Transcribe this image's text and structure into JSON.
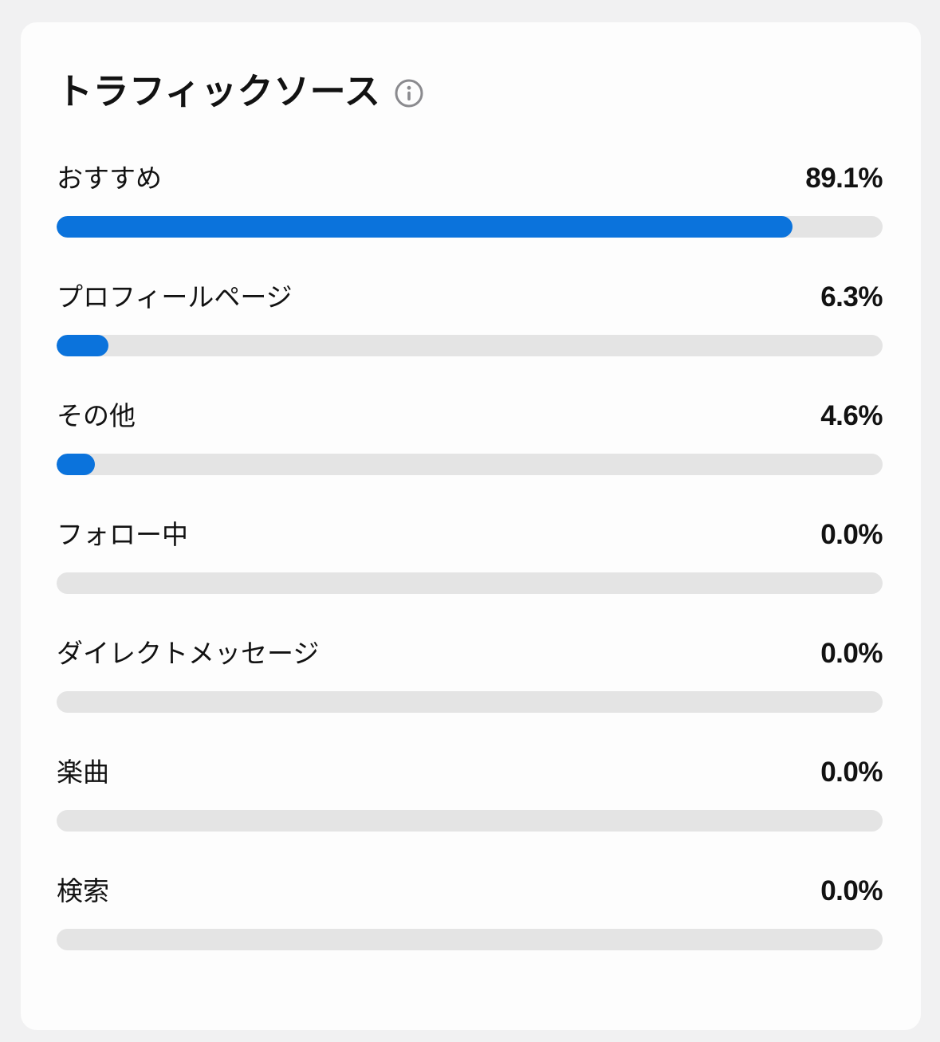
{
  "page": {
    "background": "#F1F1F2"
  },
  "card": {
    "title": "トラフィックソース",
    "background": "#FDFDFD"
  },
  "colors": {
    "bar_fill": "#0B73DC",
    "bar_track": "#E4E4E4",
    "text": "#121212",
    "info_icon": "#8A8A8E"
  },
  "rows": [
    {
      "label": "おすすめ",
      "percent": "89.1%",
      "value": 89.1
    },
    {
      "label": "プロフィールページ",
      "percent": "6.3%",
      "value": 6.3
    },
    {
      "label": "その他",
      "percent": "4.6%",
      "value": 4.6
    },
    {
      "label": "フォロー中",
      "percent": "0.0%",
      "value": 0
    },
    {
      "label": "ダイレクトメッセージ",
      "percent": "0.0%",
      "value": 0
    },
    {
      "label": "楽曲",
      "percent": "0.0%",
      "value": 0
    },
    {
      "label": "検索",
      "percent": "0.0%",
      "value": 0
    }
  ],
  "chart_data": {
    "type": "bar",
    "orientation": "horizontal",
    "title": "トラフィックソース",
    "categories": [
      "おすすめ",
      "プロフィールページ",
      "その他",
      "フォロー中",
      "ダイレクトメッセージ",
      "楽曲",
      "検索"
    ],
    "values": [
      89.1,
      6.3,
      4.6,
      0.0,
      0.0,
      0.0,
      0.0
    ],
    "value_labels": [
      "89.1%",
      "6.3%",
      "4.6%",
      "0.0%",
      "0.0%",
      "0.0%",
      "0.0%"
    ],
    "unit": "%",
    "xlim": [
      0,
      100
    ],
    "grid": false,
    "legend": false
  }
}
